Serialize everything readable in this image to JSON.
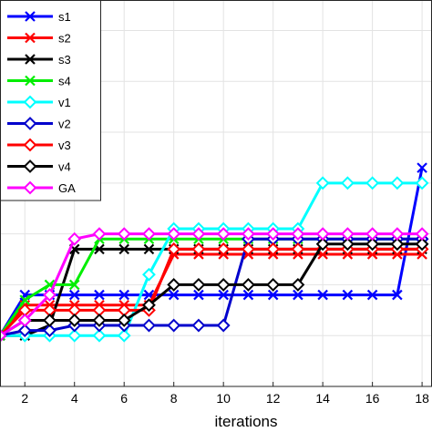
{
  "chart_data": {
    "type": "line",
    "title": "",
    "xlabel": "iterations",
    "ylabel": "",
    "xlim": [
      1,
      18.4
    ],
    "ylim": [
      0,
      7.6
    ],
    "x_ticks": [
      2,
      4,
      6,
      8,
      10,
      12,
      14,
      16,
      18
    ],
    "grid": true,
    "legend_position": "top-left",
    "x": [
      1,
      2,
      3,
      4,
      5,
      6,
      7,
      8,
      9,
      10,
      11,
      12,
      13,
      14,
      15,
      16,
      17,
      18
    ],
    "series": [
      {
        "name": "s1",
        "color": "#0000ff",
        "marker": "x",
        "values": [
          1.0,
          1.8,
          1.8,
          1.8,
          1.8,
          1.8,
          1.8,
          1.8,
          1.8,
          1.8,
          1.8,
          1.8,
          1.8,
          1.8,
          1.8,
          1.8,
          1.8,
          4.3
        ]
      },
      {
        "name": "s2",
        "color": "#ff0000",
        "marker": "x",
        "values": [
          1.0,
          1.6,
          1.6,
          1.6,
          1.6,
          1.6,
          1.6,
          2.6,
          2.6,
          2.6,
          2.6,
          2.6,
          2.6,
          2.6,
          2.6,
          2.6,
          2.6,
          2.6
        ]
      },
      {
        "name": "s3",
        "color": "#000000",
        "marker": "x",
        "values": [
          1.0,
          1.0,
          1.2,
          2.7,
          2.7,
          2.7,
          2.7,
          2.7,
          2.7,
          2.7,
          2.7,
          2.7,
          2.7,
          2.7,
          2.7,
          2.7,
          2.7,
          2.7
        ]
      },
      {
        "name": "s4",
        "color": "#00ee00",
        "marker": "x",
        "values": [
          1.0,
          1.7,
          2.0,
          2.0,
          2.9,
          2.9,
          2.9,
          2.9,
          2.9,
          2.9,
          2.9,
          2.9,
          2.9,
          2.9,
          2.9,
          2.9,
          2.9,
          2.9
        ]
      },
      {
        "name": "v1",
        "color": "#00ffff",
        "marker": "diamond",
        "values": [
          1.0,
          1.0,
          1.0,
          1.0,
          1.0,
          1.0,
          2.2,
          3.1,
          3.1,
          3.1,
          3.1,
          3.1,
          3.1,
          4.0,
          4.0,
          4.0,
          4.0,
          4.0
        ]
      },
      {
        "name": "v2",
        "color": "#0000cc",
        "marker": "diamond",
        "values": [
          1.0,
          1.1,
          1.1,
          1.2,
          1.2,
          1.2,
          1.2,
          1.2,
          1.2,
          1.2,
          2.9,
          2.9,
          2.9,
          2.9,
          2.9,
          2.9,
          2.9,
          2.9
        ]
      },
      {
        "name": "v3",
        "color": "#ff0000",
        "marker": "diamond",
        "values": [
          1.0,
          1.5,
          1.5,
          1.5,
          1.5,
          1.5,
          1.5,
          2.7,
          2.7,
          2.7,
          2.7,
          2.7,
          2.7,
          2.7,
          2.7,
          2.7,
          2.7,
          2.7
        ]
      },
      {
        "name": "v4",
        "color": "#000000",
        "marker": "diamond",
        "values": [
          1.0,
          1.3,
          1.3,
          1.3,
          1.3,
          1.3,
          1.6,
          2.0,
          2.0,
          2.0,
          2.0,
          2.0,
          2.0,
          2.8,
          2.8,
          2.8,
          2.8,
          2.8
        ]
      },
      {
        "name": "GA",
        "color": "#ff00ff",
        "marker": "diamond",
        "values": [
          1.0,
          1.3,
          1.8,
          2.9,
          3.0,
          3.0,
          3.0,
          3.0,
          3.0,
          3.0,
          3.0,
          3.0,
          3.0,
          3.0,
          3.0,
          3.0,
          3.0,
          3.0
        ]
      }
    ]
  }
}
